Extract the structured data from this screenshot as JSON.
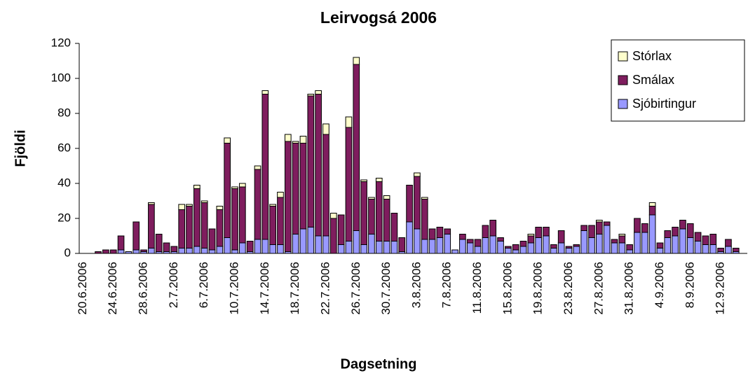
{
  "chart_data": {
    "type": "stacked_bar",
    "title": "Leirvogsá 2006",
    "xlabel": "Dagsetning",
    "ylabel": "Fjöldi",
    "categories": [
      "20.6.2006",
      null,
      null,
      null,
      "24.6.2006",
      null,
      null,
      null,
      "28.6.2006",
      null,
      null,
      null,
      "2.7.2006",
      null,
      null,
      null,
      "6.7.2006",
      null,
      null,
      null,
      "10.7.2006",
      null,
      null,
      null,
      "14.7.2006",
      null,
      null,
      null,
      "18.7.2006",
      null,
      null,
      null,
      "22.7.2006",
      null,
      null,
      null,
      "26.7.2006",
      null,
      null,
      null,
      "30.7.2006",
      null,
      null,
      null,
      "3.8.2006",
      null,
      null,
      null,
      "7.8.2006",
      null,
      null,
      null,
      "11.8.2006",
      null,
      null,
      null,
      "15.8.2006",
      null,
      null,
      null,
      "19.8.2006",
      null,
      null,
      null,
      "23.8.2006",
      null,
      null,
      null,
      "27.8.2006",
      null,
      null,
      null,
      "31.8.2006",
      null,
      null,
      null,
      "4.9.2006",
      null,
      null,
      null,
      "8.9.2006",
      null,
      null,
      null,
      "12.9.2006",
      null,
      null,
      null
    ],
    "series": [
      {
        "name": "Sjóbirtingur",
        "color": "#9999ff",
        "values": [
          0,
          0,
          0,
          0,
          0,
          2,
          1,
          2,
          1,
          3,
          1,
          1,
          1,
          3,
          3,
          4,
          3,
          2,
          4,
          9,
          2,
          6,
          1,
          8,
          8,
          5,
          5,
          1,
          11,
          14,
          15,
          10,
          10,
          0,
          5,
          7,
          13,
          5,
          11,
          7,
          7,
          7,
          1,
          18,
          14,
          8,
          8,
          9,
          11,
          2,
          8,
          6,
          4,
          9,
          10,
          7,
          3,
          2,
          4,
          6,
          9,
          10,
          3,
          6,
          3,
          4,
          13,
          9,
          11,
          16,
          6,
          6,
          2,
          12,
          12,
          22,
          3,
          9,
          10,
          14,
          9,
          7,
          5,
          5,
          1,
          4,
          1,
          0
        ]
      },
      {
        "name": "Smálax",
        "color": "#7f1d5e",
        "values": [
          0,
          0,
          1,
          2,
          2,
          8,
          0,
          16,
          1,
          25,
          10,
          5,
          3,
          22,
          24,
          33,
          26,
          12,
          21,
          54,
          35,
          32,
          6,
          40,
          83,
          22,
          27,
          63,
          52,
          49,
          75,
          81,
          58,
          20,
          17,
          65,
          95,
          36,
          20,
          34,
          24,
          16,
          8,
          21,
          30,
          23,
          6,
          6,
          3,
          0,
          3,
          2,
          4,
          7,
          9,
          2,
          1,
          3,
          3,
          4,
          6,
          5,
          2,
          7,
          1,
          1,
          3,
          7,
          7,
          2,
          2,
          4,
          3,
          8,
          5,
          5,
          3,
          4,
          5,
          5,
          8,
          5,
          5,
          6,
          2,
          4,
          2,
          0
        ]
      },
      {
        "name": "Stórlax",
        "color": "#ffffcc",
        "values": [
          0,
          0,
          0,
          0,
          0,
          0,
          0,
          0,
          0,
          1,
          0,
          0,
          0,
          3,
          1,
          2,
          1,
          0,
          2,
          3,
          1,
          2,
          0,
          2,
          2,
          1,
          3,
          4,
          1,
          4,
          1,
          2,
          6,
          3,
          0,
          6,
          4,
          1,
          1,
          2,
          2,
          0,
          0,
          0,
          2,
          1,
          0,
          0,
          0,
          0,
          0,
          0,
          0,
          0,
          0,
          0,
          0,
          0,
          0,
          1,
          0,
          0,
          0,
          0,
          0,
          0,
          0,
          0,
          1,
          0,
          0,
          1,
          0,
          0,
          0,
          2,
          0,
          0,
          0,
          0,
          0,
          0,
          0,
          0,
          0,
          0,
          0,
          0
        ]
      }
    ],
    "ylim": [
      0,
      120
    ],
    "yticks": [
      0,
      20,
      40,
      60,
      80,
      100,
      120
    ],
    "legend": "upper right"
  }
}
